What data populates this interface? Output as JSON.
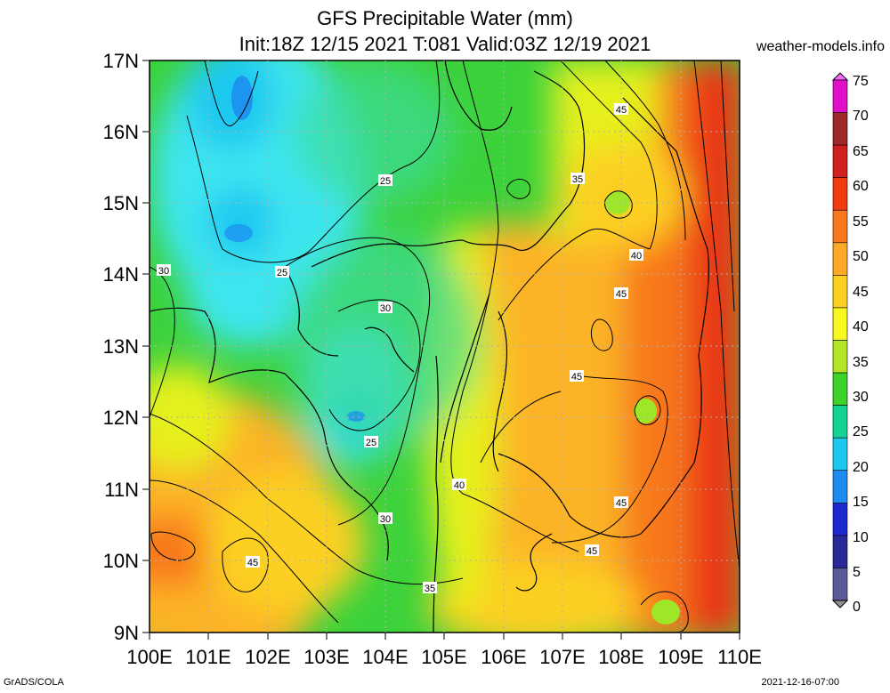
{
  "title_line1": "GFS Precipitable Water (mm)",
  "title_line2": "Init:18Z 12/15 2021 T:081 Valid:03Z 12/19 2021",
  "site": "weather-models.info",
  "footer_left": "GrADS/COLA",
  "footer_right": "2021-12-16-07:00",
  "lat_labels": [
    "17N",
    "16N",
    "15N",
    "14N",
    "13N",
    "12N",
    "11N",
    "10N",
    "9N"
  ],
  "lon_labels": [
    "100E",
    "101E",
    "102E",
    "103E",
    "104E",
    "105E",
    "106E",
    "107E",
    "108E",
    "109E",
    "110E"
  ],
  "colorbar": {
    "labels": [
      "75",
      "70",
      "65",
      "60",
      "55",
      "50",
      "45",
      "40",
      "35",
      "30",
      "25",
      "20",
      "15",
      "10",
      "5",
      "0"
    ],
    "colors": [
      "#ff66ff",
      "#e010c8",
      "#a02828",
      "#d02020",
      "#f03c10",
      "#f87820",
      "#fca828",
      "#fcd020",
      "#f8f820",
      "#b4e628",
      "#3cd228",
      "#14d296",
      "#1cc8f0",
      "#1c8cf0",
      "#1c28d0",
      "#282896",
      "#5a5a96",
      "#909090"
    ]
  },
  "contour_labels": [
    "25",
    "25",
    "25",
    "30",
    "30",
    "30",
    "35",
    "35",
    "40",
    "40",
    "45",
    "45",
    "45",
    "45",
    "45",
    "45",
    "30"
  ],
  "color_key": {
    "cyan_dry": "#3ce6f0",
    "green": "#3cd23c",
    "yellow": "#e6f01e",
    "orange": "#fcb428",
    "red": "#e83214"
  }
}
